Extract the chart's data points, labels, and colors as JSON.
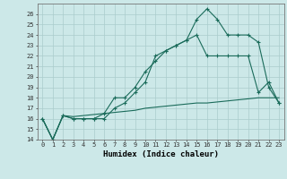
{
  "xlabel": "Humidex (Indice chaleur)",
  "bg_color": "#cce8e8",
  "grid_color": "#aacccc",
  "line_color": "#1a6b5a",
  "xlim": [
    -0.5,
    23.5
  ],
  "ylim": [
    14,
    27
  ],
  "yticks": [
    14,
    15,
    16,
    17,
    18,
    19,
    20,
    21,
    22,
    23,
    24,
    25,
    26
  ],
  "xticks": [
    0,
    1,
    2,
    3,
    4,
    5,
    6,
    7,
    8,
    9,
    10,
    11,
    12,
    13,
    14,
    15,
    16,
    17,
    18,
    19,
    20,
    21,
    22,
    23
  ],
  "line1_x": [
    0,
    1,
    2,
    3,
    4,
    5,
    6,
    7,
    8,
    9,
    10,
    11,
    12,
    13,
    14,
    15,
    16,
    17,
    18,
    19,
    20,
    21,
    22,
    23
  ],
  "line1_y": [
    16,
    14,
    16.3,
    16,
    16,
    16,
    16,
    17,
    17.5,
    18.5,
    19.5,
    22,
    22.5,
    23,
    23.5,
    25.5,
    26.5,
    25.5,
    24,
    24,
    24,
    23.3,
    19,
    17.5
  ],
  "line2_x": [
    0,
    1,
    2,
    3,
    4,
    5,
    6,
    7,
    8,
    9,
    10,
    11,
    12,
    13,
    14,
    15,
    16,
    17,
    18,
    19,
    20,
    21,
    22,
    23
  ],
  "line2_y": [
    16,
    14,
    16.3,
    16,
    16,
    16,
    16.5,
    18,
    18,
    19,
    20.5,
    21.5,
    22.5,
    23,
    23.5,
    24,
    22,
    22,
    22,
    22,
    22,
    18.5,
    19.5,
    17.5
  ],
  "line3_x": [
    0,
    1,
    2,
    3,
    4,
    5,
    6,
    7,
    8,
    9,
    10,
    11,
    12,
    13,
    14,
    15,
    16,
    17,
    18,
    19,
    20,
    21,
    22,
    23
  ],
  "line3_y": [
    16,
    14,
    16.3,
    16.2,
    16.3,
    16.4,
    16.5,
    16.6,
    16.7,
    16.8,
    17.0,
    17.1,
    17.2,
    17.3,
    17.4,
    17.5,
    17.5,
    17.6,
    17.7,
    17.8,
    17.9,
    18.0,
    18.0,
    18.0
  ]
}
